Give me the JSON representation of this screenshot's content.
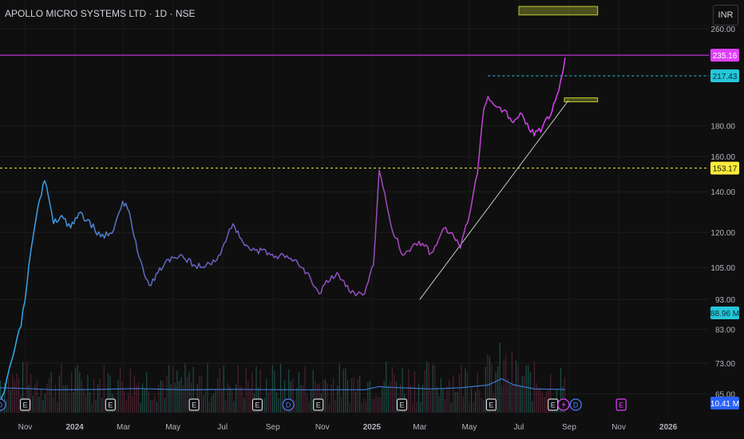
{
  "header": {
    "title": "APOLLO MICRO SYSTEMS LTD · 1D · NSE",
    "currency": "INR"
  },
  "chart_data": {
    "type": "line",
    "title": "APOLLO MICRO SYSTEMS LTD · 1D · NSE",
    "y_scale": "log",
    "ylim": [
      60.5,
      290
    ],
    "x_range": [
      "2023-10-01",
      "2026-02-20"
    ],
    "price_ticks": [
      "260.00",
      "180.00",
      "160.00",
      "140.00",
      "120.00",
      "105.00",
      "93.00",
      "83.00",
      "73.00",
      "65.00"
    ],
    "time_labels": [
      {
        "date": "2023-11-01",
        "label": "Nov"
      },
      {
        "date": "2024-01-01",
        "label": "2024"
      },
      {
        "date": "2024-03-01",
        "label": "Mar"
      },
      {
        "date": "2024-05-01",
        "label": "May"
      },
      {
        "date": "2024-07-01",
        "label": "Jul"
      },
      {
        "date": "2024-09-01",
        "label": "Sep"
      },
      {
        "date": "2024-11-01",
        "label": "Nov"
      },
      {
        "date": "2025-01-01",
        "label": "2025"
      },
      {
        "date": "2025-03-01",
        "label": "Mar"
      },
      {
        "date": "2025-05-01",
        "label": "May"
      },
      {
        "date": "2025-07-01",
        "label": "Jul"
      },
      {
        "date": "2025-09-01",
        "label": "Sep"
      },
      {
        "date": "2025-11-01",
        "label": "Nov"
      },
      {
        "date": "2026-01-01",
        "label": "2026"
      }
    ],
    "price_series": {
      "x": [
        "2023-10-01",
        "2023-10-07",
        "2023-10-13",
        "2023-10-20",
        "2023-10-27",
        "2023-11-03",
        "2023-11-08",
        "2023-11-15",
        "2023-11-25",
        "2023-12-06",
        "2023-12-16",
        "2023-12-27",
        "2024-01-06",
        "2024-01-17",
        "2024-02-02",
        "2024-02-18",
        "2024-02-29",
        "2024-03-08",
        "2024-03-18",
        "2024-04-02",
        "2024-04-23",
        "2024-05-14",
        "2024-06-04",
        "2024-06-24",
        "2024-07-14",
        "2024-07-24",
        "2024-08-06",
        "2024-08-27",
        "2024-09-16",
        "2024-09-30",
        "2024-10-13",
        "2024-10-28",
        "2024-11-06",
        "2024-11-19",
        "2024-12-04",
        "2024-12-14",
        "2024-12-23",
        "2025-01-03",
        "2025-01-10",
        "2025-01-24",
        "2025-02-08",
        "2025-02-28",
        "2025-03-15",
        "2025-03-31",
        "2025-04-12",
        "2025-04-20",
        "2025-05-01",
        "2025-05-11",
        "2025-05-19",
        "2025-05-24",
        "2025-06-04",
        "2025-06-14",
        "2025-06-24",
        "2025-07-05",
        "2025-07-20",
        "2025-07-30",
        "2025-08-09",
        "2025-08-19",
        "2025-08-24",
        "2025-08-27"
      ],
      "y": [
        62,
        66,
        72,
        78,
        84,
        98,
        112,
        128,
        146,
        124,
        128,
        122,
        129,
        126,
        118,
        121,
        135,
        130,
        112,
        98,
        108,
        109,
        105,
        108,
        124,
        117,
        112,
        111,
        109,
        108,
        103,
        95,
        100,
        103,
        96,
        95,
        95,
        106,
        152,
        124,
        110,
        116,
        111,
        122,
        118,
        113,
        128,
        150,
        192,
        201,
        193,
        191,
        182,
        188,
        173,
        179,
        187,
        205,
        220,
        233
      ],
      "colors": [
        "#29b6f6",
        "#5c6bc0",
        "#7e57c2",
        "#ab47bc",
        "#e040fb"
      ]
    },
    "volume_ma": {
      "label": "88.96 M",
      "x": [
        "2023-10-01",
        "2023-11-03",
        "2023-12-06",
        "2024-02-02",
        "2024-03-18",
        "2024-05-14",
        "2024-07-14",
        "2024-09-16",
        "2024-11-06",
        "2024-12-23",
        "2025-01-10",
        "2025-01-24",
        "2025-03-15",
        "2025-04-20",
        "2025-05-24",
        "2025-06-10",
        "2025-06-24",
        "2025-07-20",
        "2025-08-24",
        "2025-08-27"
      ],
      "y": [
        66.5,
        66.3,
        66.0,
        66.1,
        66.3,
        66.0,
        66.1,
        66.0,
        66.0,
        66.0,
        66.8,
        66.6,
        66.2,
        66.5,
        67.2,
        68.8,
        67.3,
        66.2,
        66.1,
        66.0
      ]
    },
    "volume_value_label": "10.41 M",
    "horizontal_lines": [
      {
        "price": 235.16,
        "label": "235.16",
        "color": "#e040fb",
        "style": "solid"
      },
      {
        "price": 217.43,
        "label": "217.43",
        "color": "#26c6da",
        "style": "dashed",
        "start_x": "2025-05-24"
      },
      {
        "price": 153.17,
        "label": "153.17",
        "color": "#ffeb3b",
        "style": "dashed"
      }
    ],
    "trendline": {
      "from": [
        "2025-03-01",
        93
      ],
      "to": [
        "2025-08-31",
        198
      ],
      "color": "#c8c8c8"
    },
    "zones": [
      {
        "x1": "2025-07-01",
        "x2": "2025-10-06",
        "y1": 274,
        "y2": 283,
        "color": "#c0ca33"
      },
      {
        "x1": "2025-08-26",
        "x2": "2025-10-06",
        "y1": 197,
        "y2": 200,
        "color": "#c0ca33"
      }
    ],
    "event_markers": [
      {
        "date": "2023-10-01",
        "type": "D",
        "color": "#4f7cff"
      },
      {
        "date": "2023-11-01",
        "type": "E",
        "color": "#d1d4dc"
      },
      {
        "date": "2024-02-14",
        "type": "E",
        "color": "#d1d4dc"
      },
      {
        "date": "2024-05-27",
        "type": "E",
        "color": "#d1d4dc"
      },
      {
        "date": "2024-08-13",
        "type": "E",
        "color": "#d1d4dc"
      },
      {
        "date": "2024-09-20",
        "type": "D",
        "color": "#4f7cff"
      },
      {
        "date": "2024-10-27",
        "type": "E",
        "color": "#d1d4dc"
      },
      {
        "date": "2025-02-07",
        "type": "E",
        "color": "#d1d4dc"
      },
      {
        "date": "2025-05-28",
        "type": "E",
        "color": "#d1d4dc"
      },
      {
        "date": "2025-08-12",
        "type": "E",
        "color": "#d1d4dc"
      },
      {
        "date": "2025-08-25",
        "type": "split-icon",
        "color": "#e040fb"
      },
      {
        "date": "2025-09-09",
        "type": "D",
        "color": "#4f7cff"
      },
      {
        "date": "2025-11-04",
        "type": "E",
        "color": "#e040fb"
      }
    ]
  }
}
